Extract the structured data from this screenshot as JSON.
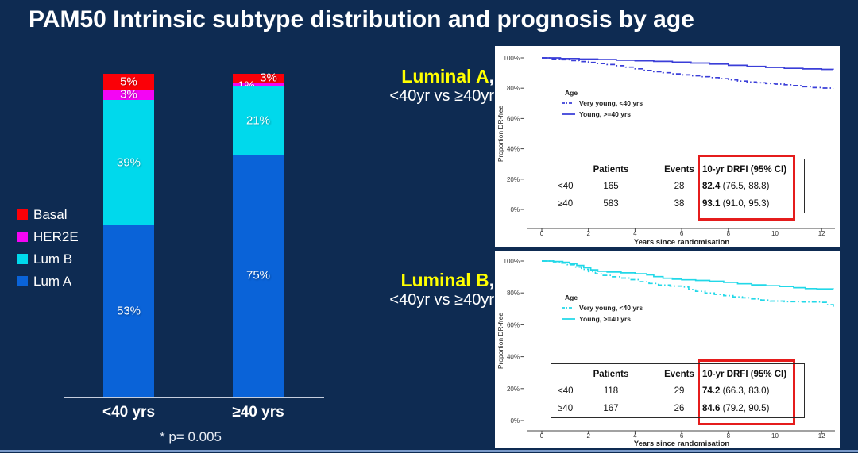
{
  "title": "PAM50 Intrinsic subtype distribution and prognosis by age",
  "footnote": "* p= 0.005",
  "colors": {
    "background": "#0e2b52",
    "title_text": "#ffffff",
    "heading_yellow": "#ffff00",
    "panel_bg": "#ffffff",
    "red_highlight": "#e51c1c",
    "km_a_line": "#3a3ed8",
    "km_b_line": "#22d8e8",
    "bar_axis": "#c6cede",
    "bottom_strip": "#7a9ac9"
  },
  "headings": [
    {
      "name": "Luminal A",
      "comma": ",",
      "sub": "<40yr vs ≥40yr"
    },
    {
      "name": "Luminal B",
      "comma": ",",
      "sub": "<40yr vs ≥40yr"
    }
  ],
  "chart_data": [
    {
      "type": "bar",
      "subtype": "stacked-percent",
      "title": "PAM50 intrinsic subtype distribution by age",
      "categories": [
        "<40 yrs",
        "≥40 yrs"
      ],
      "series": [
        {
          "name": "Basal",
          "color": "#fb0007",
          "values": [
            5,
            3
          ]
        },
        {
          "name": "HER2E",
          "color": "#f405f4",
          "values": [
            3,
            1
          ]
        },
        {
          "name": "Lum B",
          "color": "#00d9ec",
          "values": [
            39,
            21
          ]
        },
        {
          "name": "Lum A",
          "color": "#0a63d8",
          "values": [
            53,
            75
          ]
        }
      ],
      "value_labels": [
        [
          "5%",
          "3%",
          "39%",
          "53%"
        ],
        [
          "3%",
          "1%",
          "21%",
          "75%"
        ]
      ],
      "ylim": [
        0,
        100
      ],
      "legend_position": "left",
      "footnote": "* p= 0.005"
    },
    {
      "type": "line",
      "subtype": "kaplan-meier",
      "title": "Luminal A, <40yr vs ≥40yr",
      "xlabel": "Years since randomisation",
      "ylabel": "Proportion DR-free",
      "xlim": [
        0,
        12.5
      ],
      "ylim": [
        0,
        100
      ],
      "x_ticks": [
        0,
        2,
        4,
        6,
        8,
        10,
        12
      ],
      "y_ticks": [
        "0%",
        "20%",
        "40%",
        "60%",
        "80%",
        "100%"
      ],
      "line_color": "#3a3ed8",
      "legend": {
        "title": "Age",
        "entries": [
          {
            "label": "Very young, <40 yrs",
            "style": "dash-dot"
          },
          {
            "label": "Young, >=40 yrs",
            "style": "solid"
          }
        ]
      },
      "series": [
        {
          "name": "Very young, <40 yrs",
          "style": "dash-dot",
          "points": [
            [
              0,
              100
            ],
            [
              0.4,
              99.4
            ],
            [
              0.8,
              98.8
            ],
            [
              1.2,
              98.2
            ],
            [
              1.6,
              97.6
            ],
            [
              2,
              97
            ],
            [
              2.4,
              96.3
            ],
            [
              2.8,
              95.6
            ],
            [
              3.2,
              94.8
            ],
            [
              3.6,
              93.9
            ],
            [
              4,
              92.8
            ],
            [
              4.4,
              91.7
            ],
            [
              4.8,
              90.9
            ],
            [
              5.2,
              90.2
            ],
            [
              5.6,
              89.5
            ],
            [
              6,
              88.8
            ],
            [
              6.4,
              88.2
            ],
            [
              6.8,
              87.6
            ],
            [
              7.2,
              87
            ],
            [
              7.6,
              86.3
            ],
            [
              8,
              85.5
            ],
            [
              8.4,
              84.7
            ],
            [
              8.8,
              84.1
            ],
            [
              9.2,
              83.6
            ],
            [
              9.6,
              83.1
            ],
            [
              10,
              82.7
            ],
            [
              10.4,
              82.3
            ],
            [
              10.8,
              81.8
            ],
            [
              11.2,
              81
            ],
            [
              11.6,
              80.4
            ],
            [
              12,
              80.1
            ],
            [
              12.5,
              80
            ]
          ]
        },
        {
          "name": "Young, >=40 yrs",
          "style": "solid",
          "points": [
            [
              0,
              100
            ],
            [
              0.8,
              99.6
            ],
            [
              1.6,
              99.2
            ],
            [
              2.4,
              98.9
            ],
            [
              3.2,
              98.5
            ],
            [
              4,
              98.1
            ],
            [
              4.8,
              97.7
            ],
            [
              5.6,
              97.2
            ],
            [
              6.4,
              96.6
            ],
            [
              7.2,
              95.9
            ],
            [
              8,
              95.1
            ],
            [
              8.8,
              94.4
            ],
            [
              9.6,
              93.7
            ],
            [
              10.4,
              93.1
            ],
            [
              11.2,
              92.7
            ],
            [
              12,
              92.4
            ],
            [
              12.5,
              92.3
            ]
          ]
        }
      ],
      "table": {
        "headers": [
          "",
          "Patients",
          "Events",
          "10-yr DRFI (95% CI)"
        ],
        "rows": [
          {
            "group": "<40",
            "patients": "165",
            "events": "28",
            "drfi": "82.4",
            "ci": "(76.5, 88.8)"
          },
          {
            "group": "≥40",
            "patients": "583",
            "events": "38",
            "drfi": "93.1",
            "ci": "(91.0, 95.3)"
          }
        ],
        "highlight_column": "10-yr DRFI (95% CI)"
      }
    },
    {
      "type": "line",
      "subtype": "kaplan-meier",
      "title": "Luminal B, <40yr vs ≥40yr",
      "xlabel": "Years since randomisation",
      "ylabel": "Proportion DR-free",
      "xlim": [
        0,
        12.5
      ],
      "ylim": [
        0,
        100
      ],
      "x_ticks": [
        0,
        2,
        4,
        6,
        8,
        10,
        12
      ],
      "y_ticks": [
        "0%",
        "20%",
        "40%",
        "60%",
        "80%",
        "100%"
      ],
      "line_color": "#22d8e8",
      "legend": {
        "title": "Age",
        "entries": [
          {
            "label": "Very young, <40 yrs",
            "style": "dash-dot"
          },
          {
            "label": "Young, >=40 yrs",
            "style": "solid"
          }
        ]
      },
      "series": [
        {
          "name": "Very young, <40 yrs",
          "style": "dash-dot",
          "points": [
            [
              0,
              100
            ],
            [
              0.5,
              99.5
            ],
            [
              0.8,
              98.7
            ],
            [
              1.1,
              97.6
            ],
            [
              1.4,
              96.2
            ],
            [
              1.7,
              94.8
            ],
            [
              2,
              93.4
            ],
            [
              2.3,
              92
            ],
            [
              2.6,
              91
            ],
            [
              3,
              90.1
            ],
            [
              3.4,
              89.3
            ],
            [
              3.8,
              88.3
            ],
            [
              4.2,
              87
            ],
            [
              4.6,
              85.9
            ],
            [
              5,
              84.9
            ],
            [
              5.5,
              84.3
            ],
            [
              6,
              83.7
            ],
            [
              6.3,
              82.2
            ],
            [
              6.6,
              81
            ],
            [
              7,
              79.9
            ],
            [
              7.4,
              79.1
            ],
            [
              7.8,
              78.3
            ],
            [
              8.2,
              77.5
            ],
            [
              8.6,
              76.9
            ],
            [
              9,
              76.2
            ],
            [
              9.4,
              75.5
            ],
            [
              9.8,
              74.9
            ],
            [
              10.4,
              74.5
            ],
            [
              11.2,
              74.3
            ],
            [
              12,
              74.1
            ],
            [
              12.2,
              72.6
            ],
            [
              12.5,
              70.6
            ]
          ]
        },
        {
          "name": "Young, >=40 yrs",
          "style": "solid",
          "points": [
            [
              0,
              100
            ],
            [
              0.5,
              99.7
            ],
            [
              0.9,
              99.2
            ],
            [
              1.2,
              98.3
            ],
            [
              1.5,
              97.2
            ],
            [
              1.8,
              95.8
            ],
            [
              2.1,
              94.5
            ],
            [
              2.4,
              93.6
            ],
            [
              2.8,
              93.1
            ],
            [
              3.4,
              92.6
            ],
            [
              4,
              92
            ],
            [
              4.5,
              91.3
            ],
            [
              4.8,
              90.2
            ],
            [
              5.2,
              89.2
            ],
            [
              5.6,
              88.6
            ],
            [
              6,
              88.2
            ],
            [
              6.6,
              87.8
            ],
            [
              7.2,
              87.3
            ],
            [
              7.8,
              86.6
            ],
            [
              8.4,
              85.7
            ],
            [
              9,
              85
            ],
            [
              9.6,
              84.5
            ],
            [
              10.2,
              84
            ],
            [
              10.8,
              83.3
            ],
            [
              11.3,
              82.7
            ],
            [
              11.8,
              82.5
            ],
            [
              12.5,
              82.4
            ]
          ]
        }
      ],
      "table": {
        "headers": [
          "",
          "Patients",
          "Events",
          "10-yr DRFI (95% CI)"
        ],
        "rows": [
          {
            "group": "<40",
            "patients": "118",
            "events": "29",
            "drfi": "74.2",
            "ci": "(66.3, 83.0)"
          },
          {
            "group": "≥40",
            "patients": "167",
            "events": "26",
            "drfi": "84.6",
            "ci": "(79.2, 90.5)"
          }
        ],
        "highlight_column": "10-yr DRFI (95% CI)"
      }
    }
  ]
}
